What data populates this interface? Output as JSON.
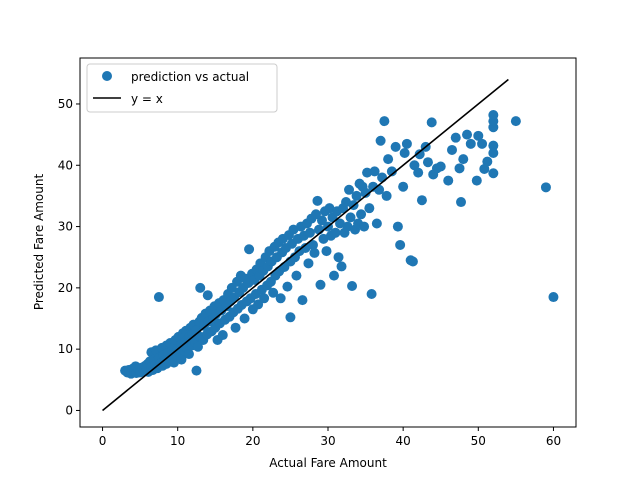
{
  "chart_data": {
    "type": "scatter",
    "title": "",
    "xlabel": "Actual Fare Amount",
    "ylabel": "Predicted Fare Amount",
    "xlim": [
      -3,
      63
    ],
    "ylim": [
      -2.7,
      57.5
    ],
    "xticks": [
      0,
      10,
      20,
      30,
      40,
      50,
      60
    ],
    "yticks": [
      0,
      10,
      20,
      30,
      40,
      50
    ],
    "xtick_labels": [
      "0",
      "10",
      "20",
      "30",
      "40",
      "50",
      "60"
    ],
    "ytick_labels": [
      "0",
      "10",
      "20",
      "30",
      "40",
      "50"
    ],
    "grid": false,
    "legend_position": "top-left",
    "series": [
      {
        "name": "prediction vs actual",
        "kind": "scatter",
        "color": "#1f77b4",
        "points": [
          [
            3.0,
            6.5
          ],
          [
            3.3,
            6.2
          ],
          [
            3.5,
            6.6
          ],
          [
            3.8,
            6.0
          ],
          [
            4.0,
            6.8
          ],
          [
            4.2,
            6.3
          ],
          [
            4.4,
            7.2
          ],
          [
            4.5,
            6.1
          ],
          [
            4.8,
            6.6
          ],
          [
            5.0,
            6.9
          ],
          [
            5.0,
            6.2
          ],
          [
            5.3,
            7.0
          ],
          [
            5.5,
            6.4
          ],
          [
            5.7,
            7.3
          ],
          [
            5.9,
            6.7
          ],
          [
            6.0,
            7.6
          ],
          [
            6.1,
            6.3
          ],
          [
            6.3,
            8.0
          ],
          [
            6.5,
            7.1
          ],
          [
            6.5,
            9.5
          ],
          [
            6.7,
            6.6
          ],
          [
            6.9,
            8.3
          ],
          [
            7.0,
            7.4
          ],
          [
            7.1,
            9.8
          ],
          [
            7.3,
            6.9
          ],
          [
            7.5,
            8.6
          ],
          [
            7.5,
            18.5
          ],
          [
            7.7,
            7.7
          ],
          [
            7.9,
            10.2
          ],
          [
            8.0,
            7.3
          ],
          [
            8.1,
            9.0
          ],
          [
            8.3,
            8.2
          ],
          [
            8.5,
            10.6
          ],
          [
            8.5,
            7.6
          ],
          [
            8.7,
            9.4
          ],
          [
            8.9,
            8.0
          ],
          [
            9.0,
            11.0
          ],
          [
            9.1,
            8.6
          ],
          [
            9.3,
            9.8
          ],
          [
            9.5,
            10.3
          ],
          [
            9.5,
            7.8
          ],
          [
            9.7,
            11.5
          ],
          [
            9.9,
            8.8
          ],
          [
            10.0,
            10.0
          ],
          [
            10.1,
            12.0
          ],
          [
            10.3,
            9.3
          ],
          [
            10.5,
            10.8
          ],
          [
            10.5,
            8.3
          ],
          [
            10.7,
            12.6
          ],
          [
            10.9,
            9.7
          ],
          [
            11.0,
            11.3
          ],
          [
            11.1,
            13.0
          ],
          [
            11.3,
            10.1
          ],
          [
            11.5,
            12.0
          ],
          [
            11.5,
            9.2
          ],
          [
            11.7,
            13.5
          ],
          [
            11.9,
            10.6
          ],
          [
            12.0,
            12.5
          ],
          [
            12.1,
            14.0
          ],
          [
            12.3,
            11.2
          ],
          [
            12.5,
            6.5
          ],
          [
            12.5,
            13.1
          ],
          [
            12.7,
            10.4
          ],
          [
            12.9,
            14.5
          ],
          [
            13.0,
            12.0
          ],
          [
            13.0,
            20.0
          ],
          [
            13.2,
            15.1
          ],
          [
            13.4,
            11.5
          ],
          [
            13.5,
            13.8
          ],
          [
            13.7,
            15.8
          ],
          [
            13.9,
            12.4
          ],
          [
            14.0,
            18.8
          ],
          [
            14.1,
            14.5
          ],
          [
            14.3,
            16.3
          ],
          [
            14.5,
            12.9
          ],
          [
            14.7,
            15.0
          ],
          [
            14.9,
            17.0
          ],
          [
            15.0,
            13.5
          ],
          [
            15.1,
            15.7
          ],
          [
            15.3,
            11.5
          ],
          [
            15.5,
            17.5
          ],
          [
            15.6,
            14.2
          ],
          [
            15.8,
            16.3
          ],
          [
            16.0,
            12.3
          ],
          [
            16.1,
            18.0
          ],
          [
            16.3,
            14.8
          ],
          [
            16.5,
            17.0
          ],
          [
            16.7,
            19.0
          ],
          [
            16.9,
            15.3
          ],
          [
            17.0,
            17.8
          ],
          [
            17.2,
            20.0
          ],
          [
            17.4,
            16.0
          ],
          [
            17.5,
            18.4
          ],
          [
            17.7,
            13.5
          ],
          [
            17.9,
            21.0
          ],
          [
            18.0,
            16.6
          ],
          [
            18.2,
            19.3
          ],
          [
            18.4,
            22.0
          ],
          [
            18.5,
            17.2
          ],
          [
            18.7,
            20.0
          ],
          [
            18.9,
            15.0
          ],
          [
            19.0,
            21.5
          ],
          [
            19.2,
            17.8
          ],
          [
            19.4,
            20.8
          ],
          [
            19.5,
            26.3
          ],
          [
            19.7,
            18.3
          ],
          [
            19.9,
            22.3
          ],
          [
            20.0,
            16.5
          ],
          [
            20.2,
            21.3
          ],
          [
            20.4,
            19.0
          ],
          [
            20.5,
            23.0
          ],
          [
            20.7,
            17.3
          ],
          [
            20.9,
            22.0
          ],
          [
            21.0,
            24.0
          ],
          [
            21.2,
            19.7
          ],
          [
            21.4,
            22.8
          ],
          [
            21.5,
            18.3
          ],
          [
            21.7,
            25.0
          ],
          [
            21.9,
            20.4
          ],
          [
            22.0,
            23.5
          ],
          [
            22.2,
            26.0
          ],
          [
            22.4,
            21.0
          ],
          [
            22.5,
            24.3
          ],
          [
            22.7,
            19.2
          ],
          [
            22.9,
            26.7
          ],
          [
            23.0,
            22.0
          ],
          [
            23.2,
            25.0
          ],
          [
            23.4,
            27.4
          ],
          [
            23.5,
            22.7
          ],
          [
            23.7,
            18.3
          ],
          [
            23.9,
            25.8
          ],
          [
            24.0,
            28.0
          ],
          [
            24.2,
            23.4
          ],
          [
            24.4,
            26.5
          ],
          [
            24.6,
            20.2
          ],
          [
            24.8,
            28.6
          ],
          [
            25.0,
            24.3
          ],
          [
            25.0,
            15.2
          ],
          [
            25.2,
            27.2
          ],
          [
            25.4,
            29.5
          ],
          [
            25.6,
            25.0
          ],
          [
            25.8,
            22.0
          ],
          [
            26.0,
            28.0
          ],
          [
            26.2,
            26.0
          ],
          [
            26.4,
            30.0
          ],
          [
            26.6,
            18.0
          ],
          [
            26.8,
            28.5
          ],
          [
            27.0,
            26.5
          ],
          [
            27.2,
            30.5
          ],
          [
            27.4,
            24.0
          ],
          [
            27.6,
            29.0
          ],
          [
            27.8,
            31.3
          ],
          [
            28.0,
            27.0
          ],
          [
            28.2,
            25.7
          ],
          [
            28.4,
            32.0
          ],
          [
            28.6,
            34.2
          ],
          [
            28.8,
            29.5
          ],
          [
            29.0,
            20.5
          ],
          [
            29.2,
            31.0
          ],
          [
            29.4,
            28.0
          ],
          [
            29.6,
            32.5
          ],
          [
            29.8,
            26.0
          ],
          [
            30.0,
            30.0
          ],
          [
            30.2,
            33.0
          ],
          [
            30.4,
            28.5
          ],
          [
            30.6,
            31.5
          ],
          [
            30.8,
            22.0
          ],
          [
            31.0,
            29.0
          ],
          [
            31.2,
            32.5
          ],
          [
            31.4,
            25.0
          ],
          [
            31.6,
            30.5
          ],
          [
            31.8,
            23.5
          ],
          [
            32.0,
            33.0
          ],
          [
            32.2,
            29.0
          ],
          [
            32.4,
            34.0
          ],
          [
            32.6,
            30.0
          ],
          [
            32.8,
            36.0
          ],
          [
            33.0,
            31.5
          ],
          [
            33.2,
            20.3
          ],
          [
            33.4,
            33.5
          ],
          [
            33.6,
            29.5
          ],
          [
            33.8,
            35.0
          ],
          [
            34.0,
            30.5
          ],
          [
            34.2,
            37.0
          ],
          [
            34.4,
            32.0
          ],
          [
            34.6,
            36.5
          ],
          [
            34.8,
            30.0
          ],
          [
            35.0,
            35.5
          ],
          [
            35.2,
            38.8
          ],
          [
            35.5,
            33.0
          ],
          [
            35.8,
            19.0
          ],
          [
            36.0,
            36.5
          ],
          [
            36.2,
            39.0
          ],
          [
            36.5,
            30.5
          ],
          [
            36.8,
            36.0
          ],
          [
            37.0,
            44.0
          ],
          [
            37.2,
            38.0
          ],
          [
            37.5,
            47.2
          ],
          [
            37.8,
            35.0
          ],
          [
            38.0,
            41.0
          ],
          [
            38.5,
            39.0
          ],
          [
            39.0,
            43.0
          ],
          [
            39.3,
            30.0
          ],
          [
            39.6,
            27.0
          ],
          [
            40.0,
            36.5
          ],
          [
            40.2,
            42.0
          ],
          [
            40.5,
            43.5
          ],
          [
            41.0,
            24.5
          ],
          [
            41.3,
            24.3
          ],
          [
            41.5,
            40.0
          ],
          [
            42.0,
            38.8
          ],
          [
            42.2,
            41.8
          ],
          [
            42.5,
            34.3
          ],
          [
            43.0,
            43.0
          ],
          [
            43.3,
            40.5
          ],
          [
            43.8,
            47.0
          ],
          [
            44.0,
            38.5
          ],
          [
            44.5,
            39.5
          ],
          [
            45.0,
            39.8
          ],
          [
            46.0,
            37.5
          ],
          [
            46.5,
            42.5
          ],
          [
            47.0,
            44.5
          ],
          [
            47.5,
            39.5
          ],
          [
            47.7,
            34.0
          ],
          [
            48.0,
            41.0
          ],
          [
            48.5,
            45.0
          ],
          [
            49.0,
            43.5
          ],
          [
            49.8,
            37.5
          ],
          [
            50.0,
            44.8
          ],
          [
            50.5,
            43.5
          ],
          [
            50.8,
            39.4
          ],
          [
            51.2,
            40.6
          ],
          [
            52.0,
            38.7
          ],
          [
            52.0,
            42.0
          ],
          [
            52.0,
            43.2
          ],
          [
            52.0,
            46.2
          ],
          [
            52.0,
            47.2
          ],
          [
            52.0,
            48.2
          ],
          [
            55.0,
            47.2
          ],
          [
            59.0,
            36.4
          ],
          [
            60.0,
            18.5
          ]
        ]
      },
      {
        "name": "y = x",
        "kind": "line",
        "color": "#000000",
        "x": [
          0,
          54
        ],
        "y": [
          0,
          54
        ]
      }
    ]
  }
}
